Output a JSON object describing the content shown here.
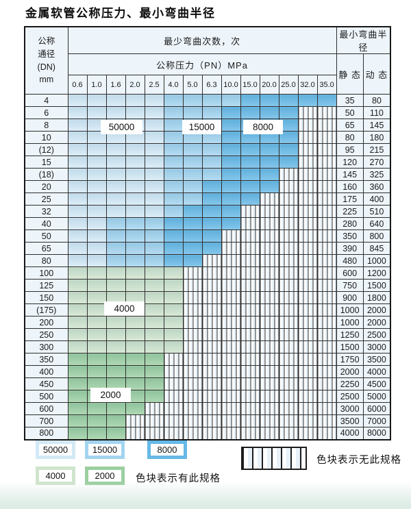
{
  "title": "金属软管公称压力、最小弯曲半径",
  "colors": {
    "50000": "#d3e9f6",
    "15000": "#a3d4ef",
    "8000": "#67b9e6",
    "4000": "#cfe4cc",
    "2000": "#9bcfa0",
    "plain_cell": "#edf4fa",
    "grid_line": "#2e2e2e"
  },
  "table": {
    "header": {
      "dn_label_lines": [
        "公称",
        "通径",
        "(DN)",
        "mm"
      ],
      "cycles_label": "最少弯曲次数，次",
      "pressure_label": "公称压力（PN）MPa",
      "radius_label": "最小弯曲半径",
      "static_label": "静 态",
      "dynamic_label": "动 态",
      "pressures": [
        "0.6",
        "1.0",
        "1.6",
        "2.0",
        "2.5",
        "4.0",
        "5.0",
        "6.3",
        "10.0",
        "15.0",
        "20.0",
        "25.0",
        "32.0",
        "35.0"
      ]
    },
    "rows": [
      {
        "dn": "4",
        "bands": [
          [
            "50000",
            4
          ],
          [
            "15000",
            8
          ],
          [
            "8000",
            13
          ]
        ],
        "static": "35",
        "dynamic": "80"
      },
      {
        "dn": "6",
        "bands": [
          [
            "50000",
            4
          ],
          [
            "15000",
            7
          ],
          [
            "8000",
            11
          ]
        ],
        "static": "50",
        "dynamic": "110"
      },
      {
        "dn": "8",
        "bands": [
          [
            "50000",
            4
          ],
          [
            "15000",
            7
          ],
          [
            "8000",
            11
          ]
        ],
        "static": "65",
        "dynamic": "145"
      },
      {
        "dn": "10",
        "bands": [
          [
            "50000",
            4
          ],
          [
            "15000",
            7
          ],
          [
            "8000",
            11
          ]
        ],
        "static": "80",
        "dynamic": "180"
      },
      {
        "dn": "(12)",
        "bands": [
          [
            "50000",
            4
          ],
          [
            "15000",
            7
          ],
          [
            "8000",
            11
          ]
        ],
        "static": "95",
        "dynamic": "215"
      },
      {
        "dn": "15",
        "bands": [
          [
            "50000",
            4
          ],
          [
            "15000",
            7
          ],
          [
            "8000",
            11
          ]
        ],
        "static": "120",
        "dynamic": "270"
      },
      {
        "dn": "(18)",
        "bands": [
          [
            "50000",
            4
          ],
          [
            "15000",
            7
          ],
          [
            "8000",
            10
          ]
        ],
        "static": "145",
        "dynamic": "325"
      },
      {
        "dn": "20",
        "bands": [
          [
            "50000",
            4
          ],
          [
            "15000",
            6
          ],
          [
            "8000",
            10
          ]
        ],
        "static": "160",
        "dynamic": "360"
      },
      {
        "dn": "25",
        "bands": [
          [
            "50000",
            4
          ],
          [
            "15000",
            6
          ],
          [
            "8000",
            9
          ]
        ],
        "static": "175",
        "dynamic": "400"
      },
      {
        "dn": "32",
        "bands": [
          [
            "50000",
            4
          ],
          [
            "15000",
            5
          ],
          [
            "8000",
            8
          ]
        ],
        "static": "225",
        "dynamic": "510"
      },
      {
        "dn": "40",
        "bands": [
          [
            "50000",
            1
          ],
          [
            "15000",
            4
          ],
          [
            "8000",
            8
          ]
        ],
        "static": "280",
        "dynamic": "640"
      },
      {
        "dn": "50",
        "bands": [
          [
            "50000",
            1
          ],
          [
            "15000",
            4
          ],
          [
            "8000",
            7
          ]
        ],
        "static": "350",
        "dynamic": "800"
      },
      {
        "dn": "65",
        "bands": [
          [
            "50000",
            1
          ],
          [
            "15000",
            4
          ],
          [
            "8000",
            7
          ]
        ],
        "static": "390",
        "dynamic": "845"
      },
      {
        "dn": "80",
        "bands": [
          [
            "50000",
            1
          ],
          [
            "15000",
            4
          ],
          [
            "8000",
            6
          ]
        ],
        "static": "480",
        "dynamic": "1000"
      },
      {
        "dn": "100",
        "bands": [
          [
            "4000",
            5
          ]
        ],
        "static": "600",
        "dynamic": "1200"
      },
      {
        "dn": "125",
        "bands": [
          [
            "4000",
            5
          ]
        ],
        "static": "750",
        "dynamic": "1500"
      },
      {
        "dn": "150",
        "bands": [
          [
            "4000",
            5
          ]
        ],
        "static": "900",
        "dynamic": "1800"
      },
      {
        "dn": "(175)",
        "bands": [
          [
            "4000",
            5
          ]
        ],
        "static": "1000",
        "dynamic": "2000"
      },
      {
        "dn": "200",
        "bands": [
          [
            "4000",
            5
          ]
        ],
        "static": "1000",
        "dynamic": "2000"
      },
      {
        "dn": "250",
        "bands": [
          [
            "4000",
            5
          ]
        ],
        "static": "1250",
        "dynamic": "2500"
      },
      {
        "dn": "300",
        "bands": [
          [
            "4000",
            5
          ]
        ],
        "static": "1500",
        "dynamic": "3000"
      },
      {
        "dn": "350",
        "bands": [
          [
            "2000",
            4
          ]
        ],
        "static": "1750",
        "dynamic": "3500"
      },
      {
        "dn": "400",
        "bands": [
          [
            "2000",
            4
          ]
        ],
        "static": "2000",
        "dynamic": "4000"
      },
      {
        "dn": "450",
        "bands": [
          [
            "2000",
            4
          ]
        ],
        "static": "2250",
        "dynamic": "4500"
      },
      {
        "dn": "500",
        "bands": [
          [
            "2000",
            4
          ]
        ],
        "static": "2500",
        "dynamic": "5000"
      },
      {
        "dn": "600",
        "bands": [
          [
            "2000",
            3
          ]
        ],
        "static": "3000",
        "dynamic": "6000"
      },
      {
        "dn": "700",
        "bands": [
          [
            "2000",
            2
          ]
        ],
        "static": "3500",
        "dynamic": "7000"
      },
      {
        "dn": "800",
        "bands": [
          [
            "2000",
            2
          ]
        ],
        "static": "4000",
        "dynamic": "8000"
      }
    ]
  },
  "overlays": [
    {
      "text": "50000"
    },
    {
      "text": "15000"
    },
    {
      "text": "8000"
    },
    {
      "text": "4000"
    },
    {
      "text": "2000"
    }
  ],
  "legend": {
    "swatches": [
      {
        "label": "50000"
      },
      {
        "label": "15000"
      },
      {
        "label": "8000"
      },
      {
        "label": "4000"
      },
      {
        "label": "2000"
      }
    ],
    "has_spec_text": "色块表示有此规格",
    "no_spec_text": "色块表示无此规格"
  }
}
